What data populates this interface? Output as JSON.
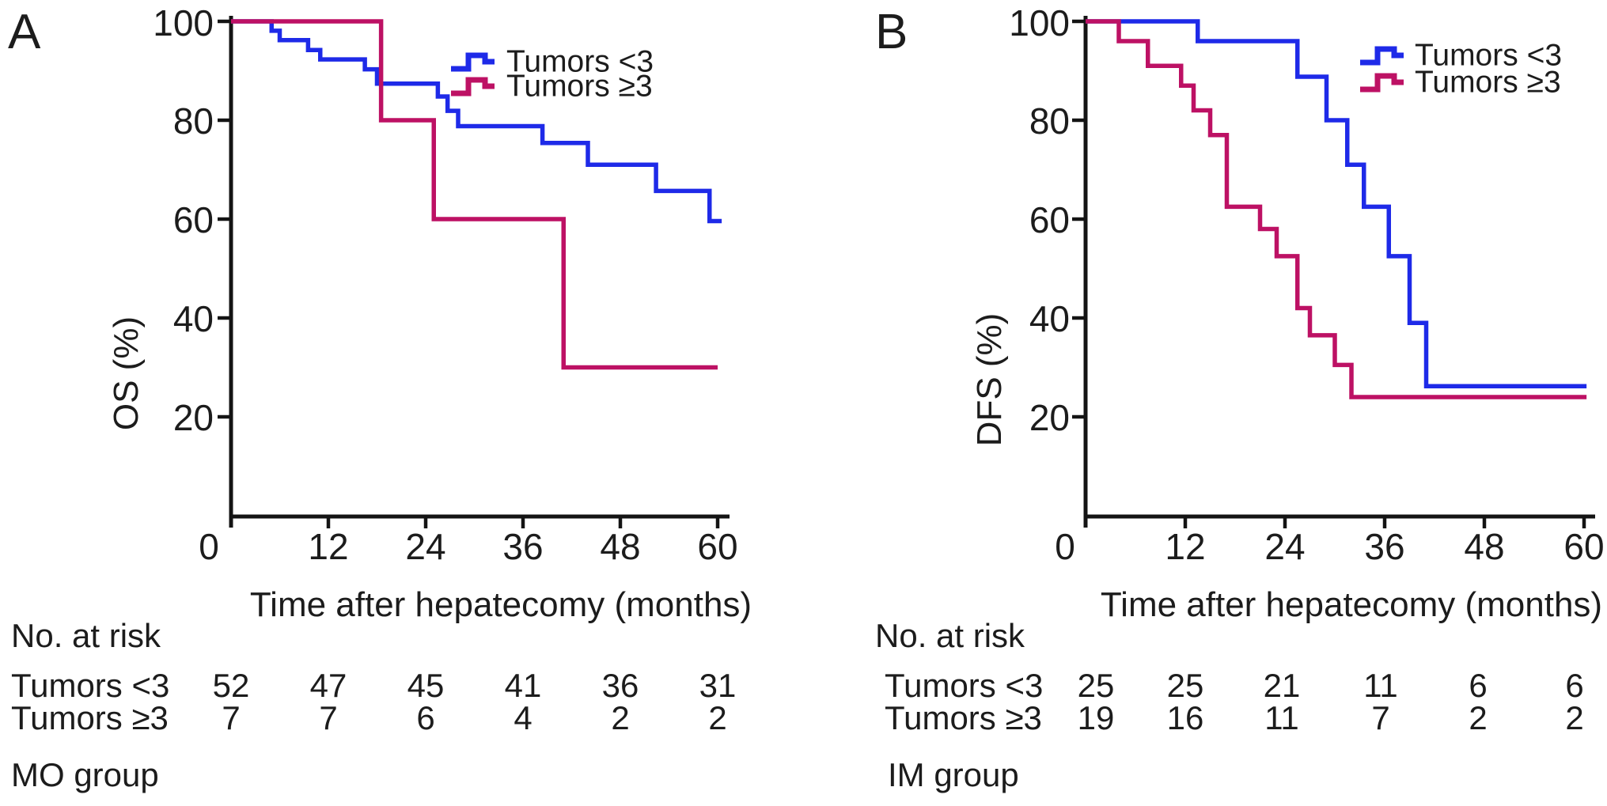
{
  "chart_data": [
    {
      "type": "line",
      "subtype": "kaplan-meier-step",
      "panel_label": "A",
      "title": "",
      "xlabel": "Time after hepatecomy (months)",
      "ylabel": "OS (%)",
      "xlim": [
        0,
        60
      ],
      "ylim": [
        0,
        100
      ],
      "xticks": [
        0,
        12,
        24,
        36,
        48,
        60
      ],
      "yticks": [
        100,
        80,
        60,
        40,
        20
      ],
      "grid": false,
      "legend_position": "top-right-inside",
      "series": [
        {
          "name": "Tumors <3",
          "color": "#1e2ae8",
          "start": [
            0,
            100
          ],
          "drops": [
            [
              5,
              98.1
            ],
            [
              6,
              96.2
            ],
            [
              9.5,
              94.2
            ],
            [
              11,
              92.3
            ],
            [
              16.5,
              90.3
            ],
            [
              18,
              87.4
            ],
            [
              25.5,
              84.8
            ],
            [
              26.7,
              81.9
            ],
            [
              28,
              78.8
            ],
            [
              38.4,
              75.4
            ],
            [
              44,
              71
            ],
            [
              52.4,
              65.7
            ],
            [
              59,
              59.6
            ]
          ],
          "end": 60.5
        },
        {
          "name": "Tumors ≥3",
          "color": "#bd1164",
          "start": [
            0,
            100
          ],
          "drops": [
            [
              18.5,
              80
            ],
            [
              25,
              60
            ],
            [
              41,
              30
            ]
          ],
          "end": 60
        }
      ],
      "no_at_risk": {
        "label": "No. at risk",
        "time_points": [
          0,
          12,
          24,
          36,
          48,
          60
        ],
        "rows": [
          {
            "name": "Tumors <3",
            "counts": [
              52,
              47,
              45,
              41,
              36,
              31
            ]
          },
          {
            "name": "Tumors ≥3",
            "counts": [
              7,
              7,
              6,
              4,
              2,
              2
            ]
          }
        ]
      },
      "group_label": "MO group"
    },
    {
      "type": "line",
      "subtype": "kaplan-meier-step",
      "panel_label": "B",
      "title": "",
      "xlabel": "Time after hepatecomy (months)",
      "ylabel": "DFS (%)",
      "xlim": [
        0,
        60
      ],
      "ylim": [
        0,
        100
      ],
      "xticks": [
        0,
        12,
        24,
        36,
        48,
        60
      ],
      "yticks": [
        100,
        80,
        60,
        40,
        20
      ],
      "grid": false,
      "legend_position": "top-right-inside",
      "series": [
        {
          "name": "Tumors <3",
          "color": "#1e2ae8",
          "start": [
            0,
            100
          ],
          "drops": [
            [
              13.5,
              96
            ],
            [
              25.5,
              88.8
            ],
            [
              29,
              80
            ],
            [
              31.5,
              71
            ],
            [
              33.5,
              62.5
            ],
            [
              36.5,
              52.5
            ],
            [
              39,
              39
            ],
            [
              41,
              26.2
            ]
          ],
          "end": 60.3
        },
        {
          "name": "Tumors ≥3",
          "color": "#bd1164",
          "start": [
            0,
            100
          ],
          "drops": [
            [
              4,
              96
            ],
            [
              7.5,
              91
            ],
            [
              11.5,
              87
            ],
            [
              13,
              82
            ],
            [
              15,
              77
            ],
            [
              17,
              62.5
            ],
            [
              21,
              58
            ],
            [
              23,
              52.5
            ],
            [
              25.5,
              42
            ],
            [
              27,
              36.5
            ],
            [
              30,
              30.5
            ],
            [
              32,
              24
            ]
          ],
          "end": 60.3
        }
      ],
      "no_at_risk": {
        "label": "No. at risk",
        "time_points": [
          0,
          12,
          24,
          36,
          48,
          60
        ],
        "rows": [
          {
            "name": "Tumors <3",
            "counts": [
              25,
              25,
              21,
              11,
              6,
              6
            ]
          },
          {
            "name": "Tumors ≥3",
            "counts": [
              19,
              16,
              11,
              7,
              2,
              2
            ]
          }
        ]
      },
      "group_label": "IM group"
    }
  ]
}
